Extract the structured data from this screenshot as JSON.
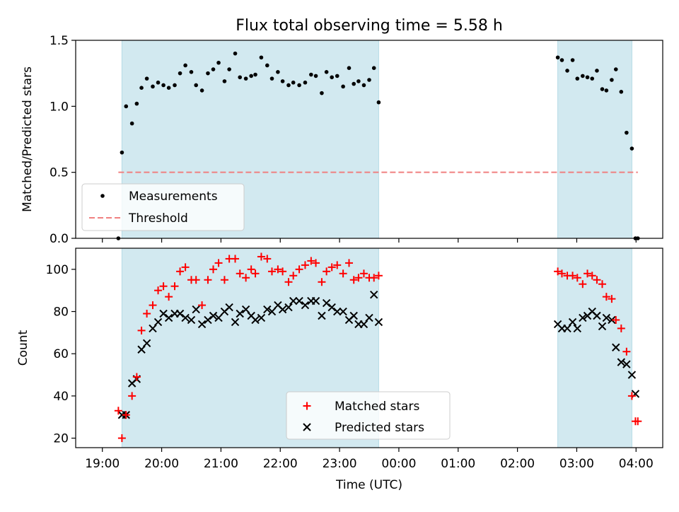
{
  "figure_title": "Flux total observing time = 5.58 h",
  "chart_data": [
    {
      "type": "scatter",
      "panel": "top",
      "title": "Flux total observing time = 5.58 h",
      "xlabel": "",
      "ylabel": "Matched/Predicted stars",
      "x_unit": "hours since 19:00 UTC",
      "xlim": [
        -0.45,
        9.45
      ],
      "ylim": [
        0.0,
        1.5
      ],
      "x_ticks": [
        0,
        1,
        2,
        3,
        4,
        5,
        6,
        7,
        8,
        9
      ],
      "x_tick_labels": [
        "19:00",
        "20:00",
        "21:00",
        "22:00",
        "23:00",
        "00:00",
        "01:00",
        "02:00",
        "03:00",
        "04:00"
      ],
      "y_ticks": [
        0.0,
        0.5,
        1.0,
        1.5
      ],
      "y_tick_labels": [
        "0.0",
        "0.5",
        "1.0",
        "1.5"
      ],
      "shaded_intervals": [
        [
          0.33,
          4.66
        ],
        [
          7.68,
          8.93
        ]
      ],
      "shade_color": "#d2e9f0",
      "legend": {
        "position": "lower-left",
        "entries": [
          "Measurements",
          "Threshold"
        ]
      },
      "threshold": {
        "name": "Threshold",
        "y": 0.5,
        "x_range": [
          0.27,
          9.03
        ],
        "color": "#f08080"
      },
      "series": [
        {
          "name": "Measurements",
          "marker": "dot",
          "color": "#000000",
          "x": [
            0.27,
            0.33,
            0.4,
            0.5,
            0.58,
            0.66,
            0.75,
            0.85,
            0.94,
            1.03,
            1.12,
            1.22,
            1.31,
            1.4,
            1.5,
            1.58,
            1.68,
            1.78,
            1.87,
            1.96,
            2.06,
            2.14,
            2.24,
            2.32,
            2.42,
            2.51,
            2.58,
            2.68,
            2.78,
            2.86,
            2.96,
            3.04,
            3.14,
            3.22,
            3.32,
            3.42,
            3.52,
            3.6,
            3.7,
            3.78,
            3.87,
            3.96,
            4.06,
            4.16,
            4.24,
            4.32,
            4.41,
            4.5,
            4.58,
            4.66,
            7.68,
            7.75,
            7.84,
            7.93,
            8.01,
            8.1,
            8.18,
            8.26,
            8.34,
            8.43,
            8.5,
            8.59,
            8.66,
            8.75,
            8.84,
            8.93,
            8.99,
            9.03
          ],
          "y": [
            0.0,
            0.65,
            1.0,
            0.87,
            1.02,
            1.14,
            1.21,
            1.15,
            1.18,
            1.16,
            1.14,
            1.16,
            1.25,
            1.31,
            1.26,
            1.16,
            1.12,
            1.25,
            1.28,
            1.33,
            1.19,
            1.28,
            1.4,
            1.22,
            1.21,
            1.23,
            1.24,
            1.37,
            1.31,
            1.21,
            1.26,
            1.19,
            1.16,
            1.18,
            1.16,
            1.18,
            1.24,
            1.23,
            1.1,
            1.26,
            1.22,
            1.23,
            1.15,
            1.29,
            1.17,
            1.19,
            1.16,
            1.2,
            1.29,
            1.03,
            1.37,
            1.35,
            1.27,
            1.35,
            1.21,
            1.23,
            1.22,
            1.21,
            1.27,
            1.13,
            1.12,
            1.2,
            1.28,
            1.11,
            0.8,
            0.68,
            0.0,
            0.0
          ]
        }
      ]
    },
    {
      "type": "scatter",
      "panel": "bottom",
      "xlabel": "Time (UTC)",
      "ylabel": "Count",
      "x_unit": "hours since 19:00 UTC",
      "xlim": [
        -0.45,
        9.45
      ],
      "ylim": [
        15.5,
        110
      ],
      "x_ticks": [
        0,
        1,
        2,
        3,
        4,
        5,
        6,
        7,
        8,
        9
      ],
      "x_tick_labels": [
        "19:00",
        "20:00",
        "21:00",
        "22:00",
        "23:00",
        "00:00",
        "01:00",
        "02:00",
        "03:00",
        "04:00"
      ],
      "y_ticks": [
        20,
        40,
        60,
        80,
        100
      ],
      "y_tick_labels": [
        "20",
        "40",
        "60",
        "80",
        "100"
      ],
      "shaded_intervals": [
        [
          0.33,
          4.66
        ],
        [
          7.68,
          8.93
        ]
      ],
      "shade_color": "#d2e9f0",
      "legend": {
        "position": "lower-center",
        "entries": [
          "Matched stars",
          "Predicted stars"
        ]
      },
      "series": [
        {
          "name": "Matched stars",
          "marker": "plus",
          "color": "#ff0000",
          "x": [
            0.27,
            0.33,
            0.4,
            0.5,
            0.58,
            0.66,
            0.75,
            0.85,
            0.94,
            1.03,
            1.12,
            1.22,
            1.31,
            1.4,
            1.5,
            1.58,
            1.68,
            1.78,
            1.87,
            1.96,
            2.06,
            2.14,
            2.24,
            2.32,
            2.42,
            2.51,
            2.58,
            2.68,
            2.78,
            2.86,
            2.96,
            3.04,
            3.14,
            3.22,
            3.32,
            3.42,
            3.52,
            3.6,
            3.7,
            3.78,
            3.87,
            3.96,
            4.06,
            4.16,
            4.24,
            4.32,
            4.41,
            4.5,
            4.58,
            4.66,
            7.68,
            7.75,
            7.84,
            7.93,
            8.01,
            8.1,
            8.18,
            8.26,
            8.34,
            8.43,
            8.5,
            8.59,
            8.66,
            8.75,
            8.84,
            8.93,
            8.99,
            9.03
          ],
          "y": [
            33,
            20,
            31,
            40,
            49,
            71,
            79,
            83,
            90,
            92,
            87,
            92,
            99,
            101,
            95,
            95,
            83,
            95,
            100,
            103,
            95,
            105,
            105,
            98,
            96,
            100,
            98,
            106,
            105,
            99,
            100,
            99,
            94,
            97,
            100,
            102,
            104,
            103,
            94,
            99,
            101,
            102,
            98,
            103,
            95,
            96,
            98,
            96,
            96,
            97,
            99,
            98,
            97,
            97,
            96,
            93,
            98,
            97,
            95,
            93,
            87,
            86,
            76,
            72,
            61,
            40,
            28,
            28
          ]
        },
        {
          "name": "Predicted stars",
          "marker": "x",
          "color": "#000000",
          "x": [
            0.33,
            0.4,
            0.5,
            0.58,
            0.66,
            0.75,
            0.85,
            0.94,
            1.03,
            1.12,
            1.22,
            1.31,
            1.4,
            1.5,
            1.58,
            1.68,
            1.78,
            1.87,
            1.96,
            2.06,
            2.14,
            2.24,
            2.32,
            2.42,
            2.51,
            2.58,
            2.68,
            2.78,
            2.86,
            2.96,
            3.04,
            3.14,
            3.22,
            3.32,
            3.42,
            3.52,
            3.6,
            3.7,
            3.78,
            3.87,
            3.96,
            4.06,
            4.16,
            4.24,
            4.32,
            4.41,
            4.5,
            4.58,
            4.66,
            7.68,
            7.75,
            7.84,
            7.93,
            8.01,
            8.1,
            8.18,
            8.26,
            8.34,
            8.43,
            8.5,
            8.59,
            8.66,
            8.75,
            8.84,
            8.93,
            8.99
          ],
          "y": [
            31,
            31,
            46,
            48,
            62,
            65,
            72,
            75,
            79,
            77,
            79,
            79,
            77,
            76,
            81,
            74,
            76,
            78,
            77,
            80,
            82,
            75,
            79,
            81,
            78,
            76,
            77,
            81,
            80,
            83,
            81,
            82,
            85,
            85,
            83,
            85,
            85,
            78,
            84,
            82,
            80,
            80,
            76,
            78,
            74,
            74,
            77,
            88,
            75,
            74,
            72,
            72,
            75,
            72,
            77,
            78,
            80,
            78,
            73,
            77,
            76,
            63,
            56,
            55,
            50,
            41
          ]
        }
      ]
    }
  ]
}
